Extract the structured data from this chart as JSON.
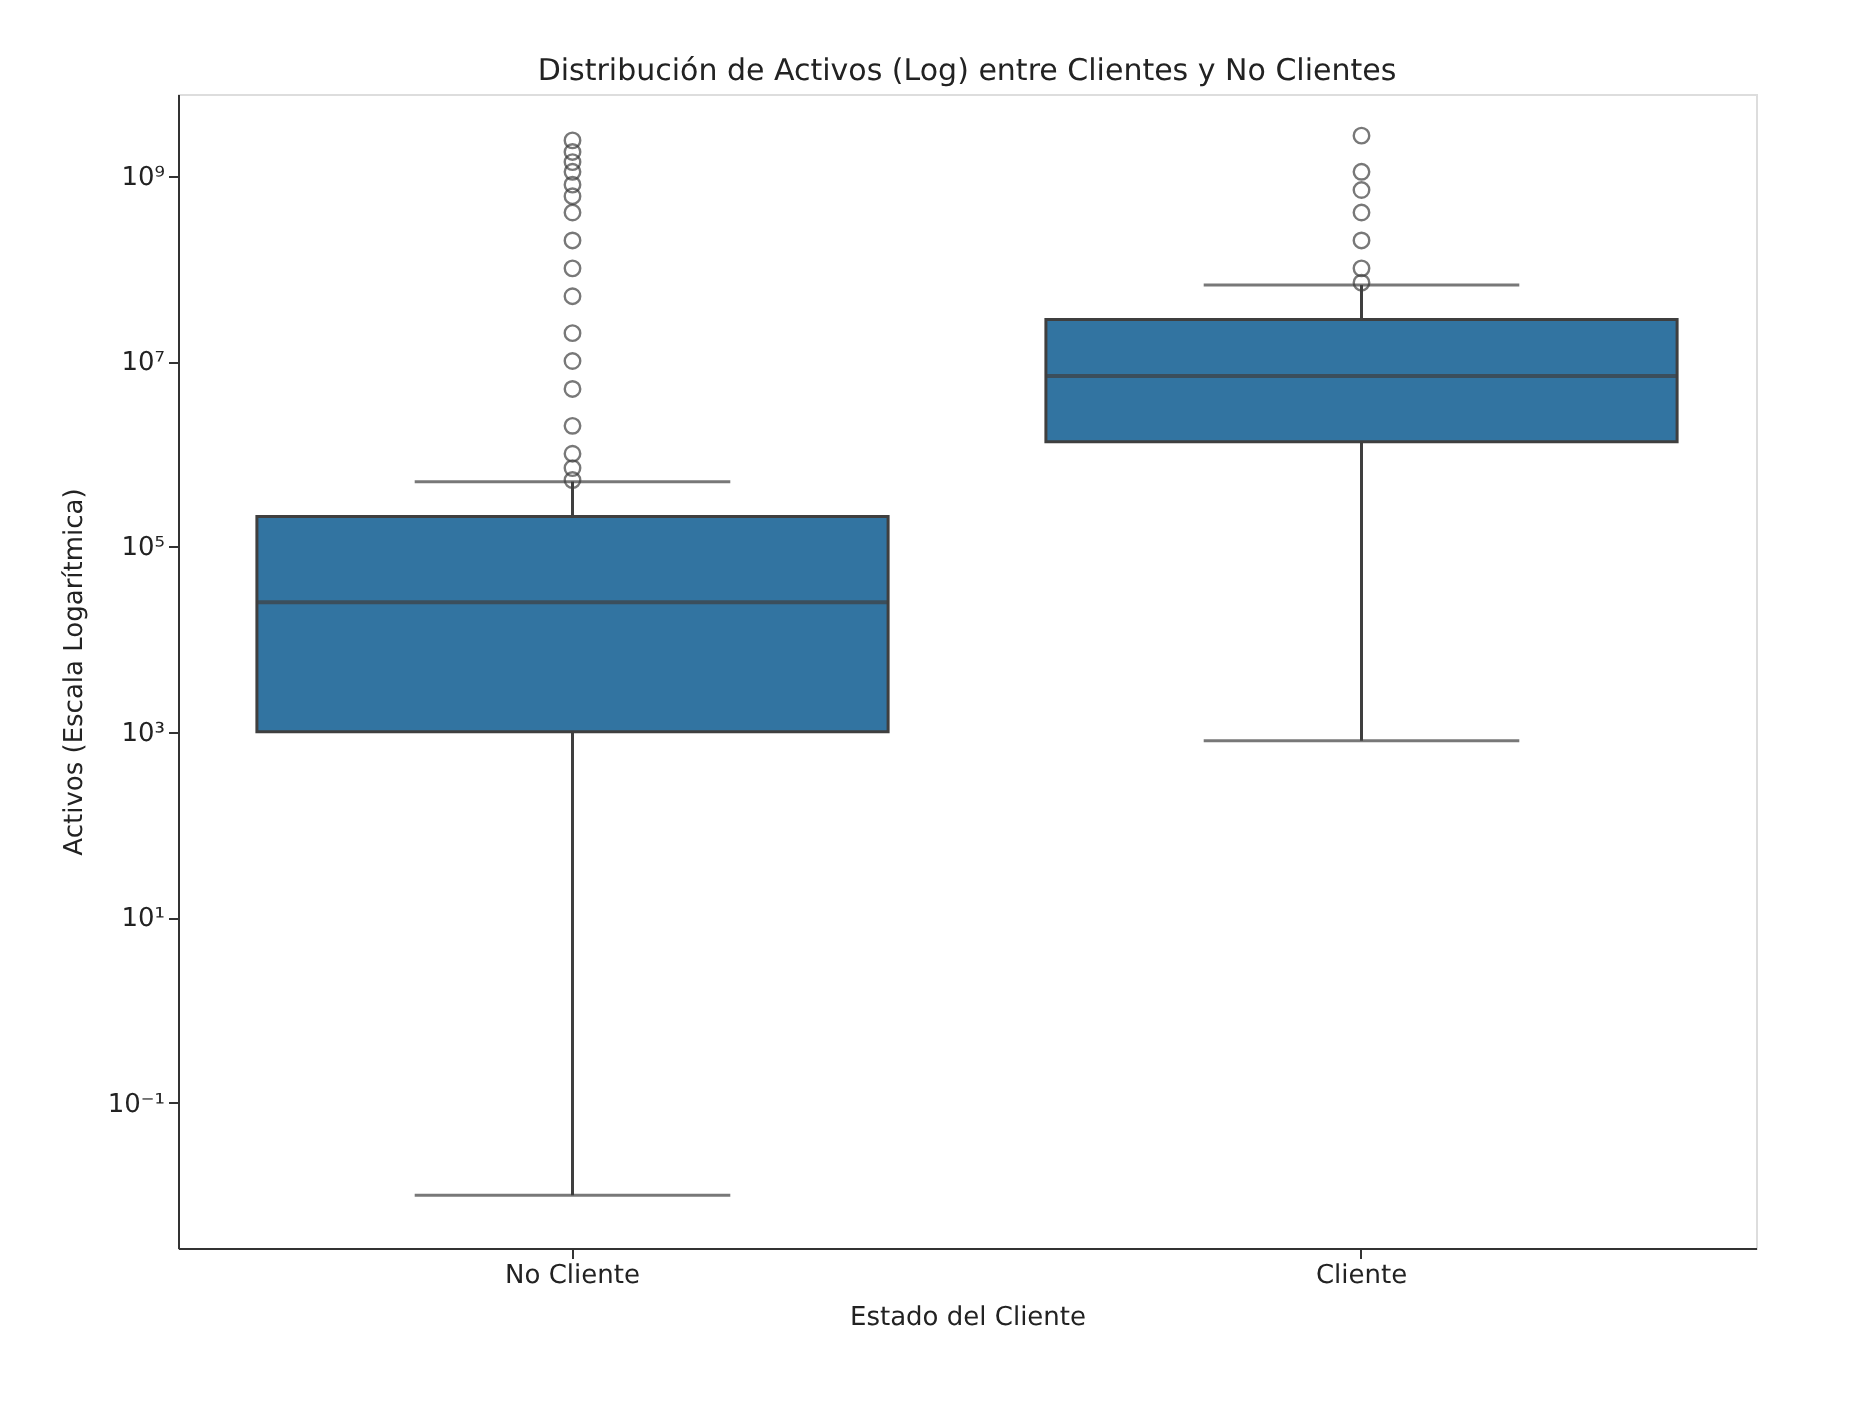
{
  "chart_data": {
    "type": "box",
    "title": "Distribución de Activos (Log) entre Clientes y No Clientes",
    "xlabel": "Estado del Cliente",
    "ylabel": "Activos (Escala Logarítmica)",
    "categories": [
      "No Cliente",
      "Cliente"
    ],
    "color": "#3274a1",
    "boxes": [
      {
        "low": 0.01,
        "q1": 1000,
        "median": 25000,
        "q3": 210000,
        "high": 500000,
        "outliers": [
          520000,
          700000,
          1000000,
          2000000,
          5000000,
          10000000,
          20000000,
          50000000,
          100000000,
          200000000,
          400000000,
          600000000,
          800000000,
          1100000000,
          1400000000,
          1800000000,
          2400000000
        ]
      },
      {
        "low": 800,
        "q1": 1350000,
        "median": 6900000,
        "q3": 28000000,
        "high": 66000000,
        "outliers": [
          70000000,
          100000000,
          200000000,
          400000000,
          700000000,
          1100000000,
          2700000000
        ]
      }
    ],
    "log": "y",
    "ylim": [
      0.0027,
      7600000000
    ],
    "yticks": [
      {
        "value": 0.1,
        "label": "10⁻¹"
      },
      {
        "value": 10,
        "label": "10¹"
      },
      {
        "value": 1000,
        "label": "10³"
      },
      {
        "value": 100000,
        "label": "10⁵"
      },
      {
        "value": 10000000,
        "label": "10⁷"
      },
      {
        "value": 1000000000,
        "label": "10⁹"
      }
    ],
    "grid": false
  }
}
